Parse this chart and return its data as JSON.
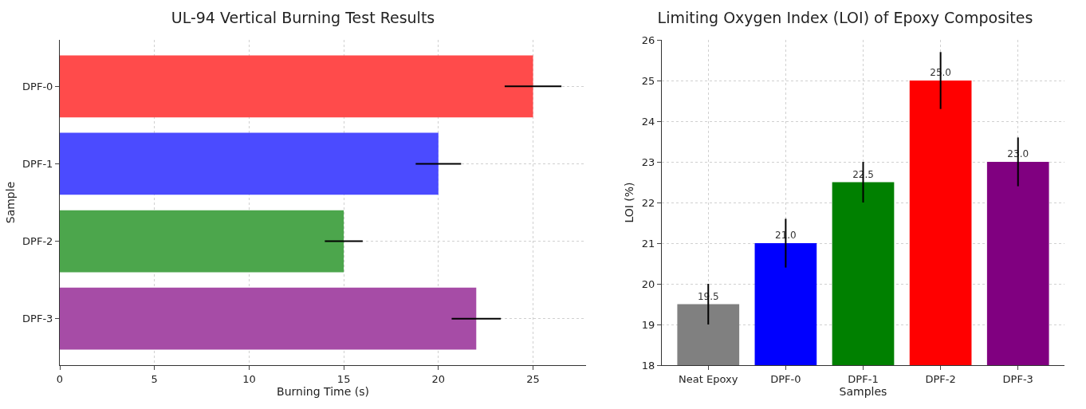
{
  "chart_data": [
    {
      "type": "bar",
      "title": "UL-94 Vertical Burning Test Results",
      "xlabel": "Burning Time (s)",
      "ylabel": "Sample",
      "orientation": "horizontal",
      "categories": [
        "DPF-0",
        "DPF-1",
        "DPF-2",
        "DPF-3"
      ],
      "values": [
        25,
        20,
        15,
        22
      ],
      "errors": [
        1.5,
        1.2,
        1,
        1.3
      ],
      "colors": [
        "#ff4b4b",
        "#4b4bff",
        "#4ca64c",
        "#a64ca6"
      ],
      "xlim": [
        0,
        27.8
      ],
      "xticks": [
        0,
        5,
        10,
        15,
        20,
        25
      ],
      "grid": true
    },
    {
      "type": "bar",
      "title": "Limiting Oxygen Index (LOI) of Epoxy Composites",
      "xlabel": "Samples",
      "ylabel": "LOI (%)",
      "categories": [
        "Neat Epoxy",
        "DPF-0",
        "DPF-1",
        "DPF-2",
        "DPF-3"
      ],
      "values": [
        19.5,
        21,
        22.5,
        25,
        23
      ],
      "errors": [
        0.5,
        0.6,
        0.5,
        0.7,
        0.6
      ],
      "value_labels": [
        "19.5",
        "21.0",
        "22.5",
        "25.0",
        "23.0"
      ],
      "colors": [
        "#808080",
        "#0000ff",
        "#008000",
        "#ff0000",
        "#800080"
      ],
      "ylim": [
        18,
        26
      ],
      "yticks": [
        18,
        19,
        20,
        21,
        22,
        23,
        24,
        25,
        26
      ],
      "grid": true
    }
  ]
}
